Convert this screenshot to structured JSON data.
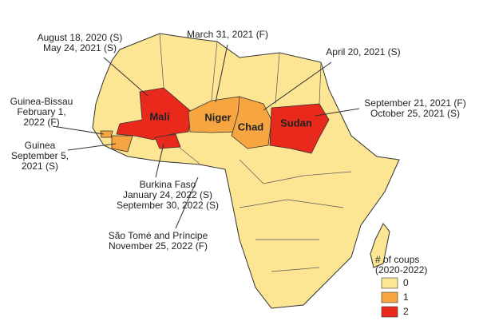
{
  "regions": [
    {
      "label": "Mali",
      "coups": 2
    },
    {
      "label": "Niger",
      "coups": 1
    },
    {
      "label": "Chad",
      "coups": 1
    },
    {
      "label": "Sudan",
      "coups": 2
    },
    {
      "coups": 2
    },
    {
      "coups": 1
    },
    {
      "coups": 1
    }
  ],
  "annotations": [
    {
      "lines": [
        "August 18, 2020 (S)",
        "May 24, 2021 (S)"
      ]
    },
    {
      "lines": [
        "March 31, 2021 (F)"
      ]
    },
    {
      "lines": [
        "April 20, 2021 (S)"
      ]
    },
    {
      "lines": [
        "Guinea-Bissau",
        "February 1,",
        "2022 (F)"
      ]
    },
    {
      "lines": [
        "September 21, 2021 (F)",
        "October 25, 2021 (S)"
      ]
    },
    {
      "lines": [
        "Guinea",
        "September 5,",
        "2021 (S)"
      ]
    },
    {
      "lines": [
        "Burkina Faso",
        "January 24, 2022 (S)",
        "September 30, 2022 (S)"
      ]
    },
    {
      "lines": [
        "São Tomé and Príncipe",
        "November 25, 2022 (F)"
      ]
    }
  ],
  "legend": {
    "title_lines": [
      "# of coups",
      "(2020-2022)"
    ],
    "items": [
      {
        "value": 0,
        "color": "#fce694"
      },
      {
        "value": 1,
        "color": "#f7a541"
      },
      {
        "value": 2,
        "color": "#e8291c"
      }
    ]
  }
}
